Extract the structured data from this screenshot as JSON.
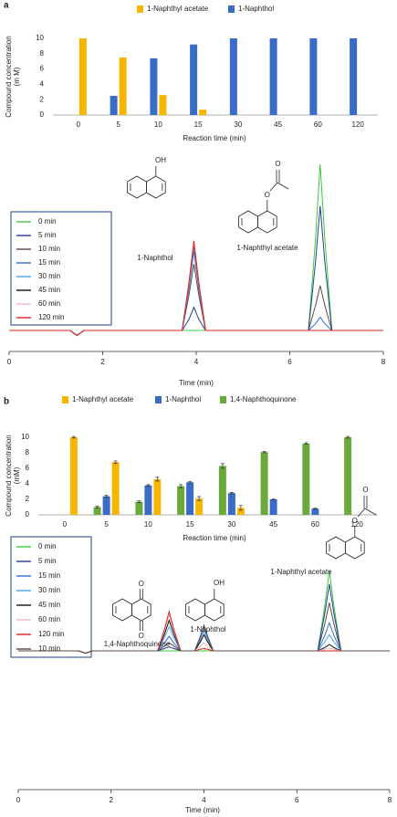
{
  "chart_data": [
    {
      "type": "bar",
      "panel_label": "a",
      "categories": [
        "0",
        "5",
        "10",
        "15",
        "30",
        "45",
        "60",
        "120"
      ],
      "series": [
        {
          "name": "1-Naphthyl acetate",
          "color": "#f6b500",
          "values": [
            10,
            7.5,
            2.6,
            0.7,
            0,
            0,
            0,
            0
          ]
        },
        {
          "name": "1-Naphthol",
          "color": "#3a6bc6",
          "values": [
            0,
            2.5,
            7.4,
            9.2,
            10,
            10,
            10,
            10
          ]
        }
      ],
      "ylabel": [
        "Compound concentration",
        "(m M)"
      ],
      "xlabel": "Reaction time (min)",
      "ylim": [
        0,
        10
      ],
      "yticks": [
        0,
        2,
        4,
        6,
        8,
        10
      ]
    },
    {
      "type": "line",
      "x": [
        0,
        1.3,
        1.45,
        1.6,
        3.7,
        3.85,
        3.95,
        4.05,
        4.2,
        6.4,
        6.55,
        6.65,
        6.75,
        6.9,
        8
      ],
      "series": [
        {
          "name": "0 min",
          "color": "#3cc83c",
          "values": [
            0,
            0,
            -3,
            0,
            0,
            0,
            0,
            0,
            0,
            0,
            55,
            100,
            55,
            0,
            0
          ]
        },
        {
          "name": "5 min",
          "color": "#1f3f8f",
          "values": [
            0,
            0,
            -3,
            0,
            0,
            7,
            14,
            7,
            0,
            0,
            41,
            75,
            41,
            0,
            0
          ]
        },
        {
          "name": "10 min",
          "color": "#5a4a4a",
          "values": [
            0,
            0,
            -3,
            0,
            0,
            22,
            40,
            22,
            0,
            0,
            15,
            27,
            15,
            0,
            0
          ]
        },
        {
          "name": "15 min",
          "color": "#2f6fd0",
          "values": [
            0,
            0,
            -3,
            0,
            0,
            26,
            48,
            26,
            0,
            0,
            4,
            8,
            4,
            0,
            0
          ]
        },
        {
          "name": "30 min",
          "color": "#4da3e0",
          "values": [
            0,
            0,
            -3,
            0,
            0,
            29,
            52,
            29,
            0,
            0,
            0,
            0,
            0,
            0,
            0
          ]
        },
        {
          "name": "45 min",
          "color": "#111111",
          "values": [
            0,
            0,
            -3,
            0,
            0,
            29,
            52,
            29,
            0,
            0,
            0,
            0,
            0,
            0,
            0
          ]
        },
        {
          "name": "60 min",
          "color": "#f0b8c0",
          "values": [
            0,
            0,
            -3,
            0,
            0,
            29,
            53,
            29,
            0,
            0,
            0,
            0,
            0,
            0,
            0
          ]
        },
        {
          "name": "120 min",
          "color": "#e02020",
          "values": [
            0,
            0,
            -3,
            0,
            0,
            30,
            54,
            30,
            0,
            0,
            0,
            0,
            0,
            0,
            0
          ]
        }
      ],
      "xlim": [
        0,
        8
      ],
      "xticks": [
        0,
        2,
        4,
        6,
        8
      ],
      "ylim": [
        0,
        100
      ],
      "xlabel": "Time (min)",
      "annotations": [
        "1-Naphthol",
        "1-Naphthyl acetate"
      ],
      "structure_labels": [
        "OH",
        "O",
        "O"
      ]
    },
    {
      "type": "bar",
      "panel_label": "b",
      "categories": [
        "0",
        "5",
        "10",
        "15",
        "30",
        "45",
        "60",
        "120"
      ],
      "series": [
        {
          "name": "1-Naphthyl acetate",
          "color": "#f6b500",
          "values": [
            10,
            6.8,
            4.6,
            2.1,
            0.9,
            0,
            0,
            0
          ],
          "errors": [
            0.1,
            0.15,
            0.25,
            0.25,
            0.3,
            0,
            0,
            0
          ]
        },
        {
          "name": "1-Naphthol",
          "color": "#3a6bc6",
          "values": [
            0,
            2.4,
            3.8,
            4.2,
            2.8,
            2.0,
            0.8,
            0
          ],
          "errors": [
            0,
            0.15,
            0.1,
            0.1,
            0.1,
            0.05,
            0.05,
            0
          ]
        },
        {
          "name": "1,4-Naphthoquinone",
          "color": "#6aaa3c",
          "values": [
            0,
            1.0,
            1.7,
            3.7,
            6.3,
            8.1,
            9.2,
            10
          ],
          "errors": [
            0,
            0.1,
            0.1,
            0.2,
            0.3,
            0.1,
            0.1,
            0.1
          ]
        }
      ],
      "ylabel": [
        "Compound concentration",
        "(mM)"
      ],
      "xlabel": "Reaction time (min)",
      "ylim": [
        0,
        10
      ],
      "yticks": [
        0,
        2,
        4,
        6,
        8,
        10
      ]
    },
    {
      "type": "line",
      "x": [
        0,
        1.3,
        1.45,
        1.6,
        3.0,
        3.15,
        3.25,
        3.35,
        3.5,
        3.8,
        3.92,
        4.0,
        4.08,
        4.2,
        6.45,
        6.6,
        6.7,
        6.8,
        6.95,
        8
      ],
      "series": [
        {
          "name": "0 min",
          "color": "#3cc83c",
          "values": [
            0,
            0,
            -3,
            0,
            0,
            0,
            0,
            0,
            0,
            0,
            0,
            0,
            0,
            0,
            0,
            55,
            100,
            55,
            0,
            0
          ]
        },
        {
          "name": "5 min",
          "color": "#1f3f8f",
          "values": [
            0,
            0,
            -3,
            0,
            0,
            3,
            5,
            3,
            0,
            0,
            14,
            25,
            14,
            0,
            0,
            46,
            83,
            46,
            0,
            0
          ]
        },
        {
          "name": "15 min",
          "color": "#2f6fd0",
          "values": [
            0,
            0,
            -3,
            0,
            0,
            10,
            18,
            10,
            0,
            0,
            17,
            30,
            17,
            0,
            0,
            19,
            35,
            19,
            0,
            0
          ]
        },
        {
          "name": "30 min",
          "color": "#4da3e0",
          "values": [
            0,
            0,
            -3,
            0,
            0,
            17,
            30,
            17,
            0,
            0,
            14,
            25,
            14,
            0,
            0,
            11,
            20,
            11,
            0,
            0
          ]
        },
        {
          "name": "45 min",
          "color": "#111111",
          "values": [
            0,
            0,
            -3,
            0,
            0,
            21,
            38,
            21,
            0,
            0,
            11,
            20,
            11,
            0,
            0,
            4,
            8,
            4,
            0,
            0
          ]
        },
        {
          "name": "60 min",
          "color": "#f0b8c0",
          "values": [
            0,
            0,
            -3,
            0,
            0,
            25,
            45,
            25,
            0,
            0,
            6,
            10,
            6,
            0,
            0,
            2,
            3,
            2,
            0,
            0
          ]
        },
        {
          "name": "120 min",
          "color": "#e02020",
          "values": [
            0,
            0,
            -3,
            0,
            0,
            27,
            49,
            27,
            0,
            0,
            2,
            3,
            2,
            0,
            0,
            0,
            0,
            0,
            0,
            0
          ]
        },
        {
          "name": "10 min",
          "color": "#5a4a4a",
          "values": [
            0,
            0,
            -3,
            0,
            0,
            6,
            10,
            6,
            0,
            0,
            18,
            32,
            18,
            0,
            0,
            33,
            60,
            33,
            0,
            0
          ]
        }
      ],
      "xlim": [
        0,
        8
      ],
      "xticks": [
        0,
        2,
        4,
        6,
        8
      ],
      "ylim": [
        0,
        100
      ],
      "xlabel": "Time (min)",
      "annotations": [
        "1,4-Naphthoquinone",
        "1-Naphthol",
        "1-Naphthyl acetate"
      ],
      "structure_labels": [
        "O",
        "O",
        "OH",
        "O",
        "O"
      ]
    }
  ]
}
